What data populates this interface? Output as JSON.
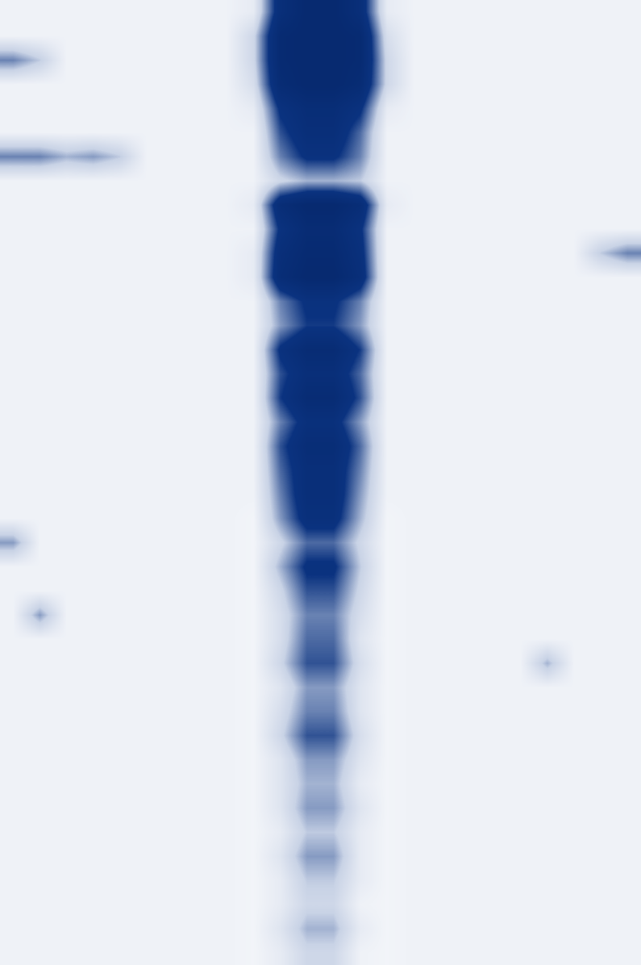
{
  "chart_data": {
    "type": "heatmap",
    "tick_labels": false,
    "value_range": [
      0,
      1
    ],
    "cells": [
      [
        0.1,
        0.1,
        0.1,
        0.1,
        0.1,
        0.1,
        0.1,
        0.1,
        0.1,
        0.15,
        0.8,
        1,
        1,
        0.8,
        0.15,
        0.1,
        0.1,
        0.1,
        0.1,
        0.1,
        0.1,
        0.1,
        0.1,
        0.1
      ],
      [
        0.1,
        0.1,
        0.1,
        0.1,
        0.1,
        0.1,
        0.1,
        0.1,
        0.1,
        0.3,
        0.95,
        1,
        1,
        0.95,
        0.25,
        0.1,
        0.1,
        0.1,
        0.1,
        0.1,
        0.1,
        0.1,
        0.1,
        0.1
      ],
      [
        0.5,
        0.35,
        0.1,
        0.1,
        0.1,
        0.1,
        0.1,
        0.1,
        0.1,
        0.3,
        0.95,
        1,
        1,
        0.95,
        0.3,
        0.1,
        0.1,
        0.1,
        0.1,
        0.1,
        0.1,
        0.1,
        0.1,
        0.1
      ],
      [
        0.1,
        0.1,
        0.1,
        0.1,
        0.1,
        0.1,
        0.1,
        0.1,
        0.1,
        0.25,
        0.9,
        1,
        1,
        0.9,
        0.3,
        0.1,
        0.1,
        0.1,
        0.1,
        0.1,
        0.1,
        0.1,
        0.1,
        0.1
      ],
      [
        0.1,
        0.1,
        0.1,
        0.1,
        0.1,
        0.1,
        0.1,
        0.1,
        0.1,
        0.15,
        0.7,
        0.85,
        0.85,
        0.7,
        0.15,
        0.1,
        0.1,
        0.1,
        0.1,
        0.1,
        0.1,
        0.1,
        0.1,
        0.1
      ],
      [
        0.1,
        0.1,
        0.1,
        0.1,
        0.1,
        0.1,
        0.1,
        0.1,
        0.1,
        0.1,
        0.6,
        0.8,
        0.8,
        0.55,
        0.1,
        0.1,
        0.1,
        0.1,
        0.1,
        0.1,
        0.1,
        0.1,
        0.1,
        0.1
      ],
      [
        0.5,
        0.5,
        0.4,
        0.45,
        0.35,
        0.1,
        0.1,
        0.1,
        0.1,
        0.1,
        0.5,
        0.7,
        0.7,
        0.5,
        0.1,
        0.1,
        0.1,
        0.1,
        0.1,
        0.1,
        0.1,
        0.1,
        0.1,
        0.1
      ],
      [
        0.1,
        0.1,
        0.1,
        0.1,
        0.1,
        0.1,
        0.1,
        0.1,
        0.1,
        0.1,
        0.3,
        0.4,
        0.4,
        0.35,
        0.1,
        0.1,
        0.1,
        0.1,
        0.1,
        0.1,
        0.1,
        0.1,
        0.1,
        0.1
      ],
      [
        0.1,
        0.1,
        0.1,
        0.1,
        0.1,
        0.1,
        0.1,
        0.1,
        0.1,
        0.15,
        0.85,
        1,
        1,
        0.85,
        0.15,
        0.1,
        0.1,
        0.1,
        0.1,
        0.1,
        0.1,
        0.1,
        0.1,
        0.1
      ],
      [
        0.1,
        0.1,
        0.1,
        0.1,
        0.1,
        0.1,
        0.1,
        0.1,
        0.1,
        0.1,
        0.7,
        0.9,
        0.9,
        0.7,
        0.1,
        0.1,
        0.1,
        0.1,
        0.1,
        0.1,
        0.1,
        0.1,
        0.1,
        0.1
      ],
      [
        0.1,
        0.1,
        0.1,
        0.1,
        0.1,
        0.1,
        0.1,
        0.1,
        0.1,
        0.15,
        0.8,
        0.95,
        0.95,
        0.75,
        0.1,
        0.1,
        0.1,
        0.1,
        0.1,
        0.1,
        0.1,
        0.1,
        0.35,
        0.5
      ],
      [
        0.1,
        0.1,
        0.1,
        0.1,
        0.1,
        0.1,
        0.1,
        0.1,
        0.1,
        0.15,
        0.85,
        1,
        1,
        0.8,
        0.1,
        0.1,
        0.1,
        0.1,
        0.1,
        0.1,
        0.1,
        0.1,
        0.1,
        0.1
      ],
      [
        0.1,
        0.1,
        0.1,
        0.1,
        0.1,
        0.1,
        0.1,
        0.1,
        0.1,
        0.1,
        0.5,
        0.7,
        0.7,
        0.5,
        0.1,
        0.1,
        0.1,
        0.1,
        0.1,
        0.1,
        0.1,
        0.1,
        0.1,
        0.1
      ],
      [
        0.1,
        0.1,
        0.1,
        0.1,
        0.1,
        0.1,
        0.1,
        0.1,
        0.1,
        0.1,
        0.45,
        0.65,
        0.65,
        0.45,
        0.1,
        0.1,
        0.1,
        0.1,
        0.1,
        0.1,
        0.1,
        0.1,
        0.1,
        0.1
      ],
      [
        0.1,
        0.1,
        0.1,
        0.1,
        0.1,
        0.1,
        0.1,
        0.1,
        0.1,
        0.1,
        0.7,
        0.9,
        0.9,
        0.65,
        0.1,
        0.1,
        0.1,
        0.1,
        0.1,
        0.1,
        0.1,
        0.1,
        0.1,
        0.1
      ],
      [
        0.1,
        0.1,
        0.1,
        0.1,
        0.1,
        0.1,
        0.1,
        0.1,
        0.1,
        0.1,
        0.6,
        0.8,
        0.8,
        0.55,
        0.1,
        0.1,
        0.1,
        0.1,
        0.1,
        0.1,
        0.1,
        0.1,
        0.1,
        0.1
      ],
      [
        0.1,
        0.1,
        0.1,
        0.1,
        0.1,
        0.1,
        0.1,
        0.1,
        0.1,
        0.1,
        0.65,
        0.9,
        0.9,
        0.6,
        0.1,
        0.1,
        0.1,
        0.1,
        0.1,
        0.1,
        0.1,
        0.1,
        0.1,
        0.1
      ],
      [
        0.1,
        0.1,
        0.1,
        0.1,
        0.1,
        0.1,
        0.1,
        0.1,
        0.1,
        0.1,
        0.5,
        0.75,
        0.75,
        0.45,
        0.1,
        0.1,
        0.1,
        0.1,
        0.1,
        0.1,
        0.1,
        0.1,
        0.1,
        0.1
      ],
      [
        0.1,
        0.1,
        0.1,
        0.1,
        0.1,
        0.1,
        0.1,
        0.1,
        0.1,
        0.1,
        0.6,
        0.85,
        0.85,
        0.55,
        0.1,
        0.1,
        0.1,
        0.1,
        0.1,
        0.1,
        0.1,
        0.1,
        0.1,
        0.1
      ],
      [
        0.1,
        0.1,
        0.1,
        0.1,
        0.1,
        0.1,
        0.1,
        0.1,
        0.1,
        0.1,
        0.55,
        0.8,
        0.8,
        0.5,
        0.1,
        0.1,
        0.1,
        0.1,
        0.1,
        0.1,
        0.1,
        0.1,
        0.1,
        0.1
      ],
      [
        0.1,
        0.1,
        0.1,
        0.1,
        0.1,
        0.1,
        0.1,
        0.1,
        0.1,
        0.1,
        0.5,
        0.8,
        0.8,
        0.45,
        0.1,
        0.1,
        0.1,
        0.1,
        0.1,
        0.1,
        0.1,
        0.1,
        0.1,
        0.1
      ],
      [
        0.1,
        0.1,
        0.1,
        0.1,
        0.1,
        0.1,
        0.1,
        0.1,
        0.1,
        0.08,
        0.45,
        0.75,
        0.75,
        0.4,
        0.08,
        0.1,
        0.1,
        0.1,
        0.1,
        0.1,
        0.1,
        0.1,
        0.1,
        0.1
      ],
      [
        0.45,
        0.1,
        0.1,
        0.1,
        0.1,
        0.1,
        0.1,
        0.1,
        0.1,
        0.08,
        0.3,
        0.55,
        0.55,
        0.3,
        0.08,
        0.1,
        0.1,
        0.1,
        0.1,
        0.1,
        0.1,
        0.1,
        0.1,
        0.1
      ],
      [
        0.1,
        0.1,
        0.1,
        0.1,
        0.1,
        0.1,
        0.1,
        0.1,
        0.1,
        0.08,
        0.4,
        0.7,
        0.7,
        0.35,
        0.08,
        0.1,
        0.1,
        0.1,
        0.1,
        0.1,
        0.1,
        0.1,
        0.1,
        0.1
      ],
      [
        0.1,
        0.1,
        0.1,
        0.1,
        0.1,
        0.1,
        0.1,
        0.1,
        0.1,
        0.08,
        0.3,
        0.6,
        0.6,
        0.3,
        0.08,
        0.1,
        0.1,
        0.1,
        0.1,
        0.1,
        0.1,
        0.1,
        0.1,
        0.1
      ],
      [
        0.1,
        0.45,
        0.1,
        0.1,
        0.1,
        0.1,
        0.1,
        0.1,
        0.1,
        0.08,
        0.25,
        0.5,
        0.5,
        0.25,
        0.08,
        0.1,
        0.1,
        0.1,
        0.1,
        0.1,
        0.1,
        0.1,
        0.1,
        0.1
      ],
      [
        0.1,
        0.1,
        0.1,
        0.1,
        0.1,
        0.1,
        0.1,
        0.1,
        0.1,
        0.08,
        0.25,
        0.55,
        0.55,
        0.2,
        0.08,
        0.1,
        0.1,
        0.1,
        0.1,
        0.1,
        0.1,
        0.1,
        0.1,
        0.1
      ],
      [
        0.1,
        0.1,
        0.1,
        0.1,
        0.1,
        0.1,
        0.1,
        0.1,
        0.1,
        0.08,
        0.3,
        0.6,
        0.6,
        0.25,
        0.08,
        0.1,
        0.1,
        0.1,
        0.1,
        0.1,
        0.4,
        0.1,
        0.1,
        0.1
      ],
      [
        0.1,
        0.1,
        0.1,
        0.1,
        0.1,
        0.1,
        0.1,
        0.1,
        0.1,
        0.08,
        0.2,
        0.45,
        0.45,
        0.2,
        0.08,
        0.1,
        0.1,
        0.1,
        0.1,
        0.1,
        0.1,
        0.1,
        0.1,
        0.1
      ],
      [
        0.1,
        0.1,
        0.1,
        0.1,
        0.1,
        0.1,
        0.1,
        0.1,
        0.1,
        0.08,
        0.25,
        0.5,
        0.5,
        0.2,
        0.08,
        0.1,
        0.1,
        0.1,
        0.1,
        0.1,
        0.1,
        0.1,
        0.1,
        0.1
      ],
      [
        0.1,
        0.1,
        0.1,
        0.1,
        0.1,
        0.1,
        0.1,
        0.1,
        0.1,
        0.08,
        0.3,
        0.6,
        0.6,
        0.25,
        0.08,
        0.1,
        0.1,
        0.1,
        0.1,
        0.1,
        0.1,
        0.1,
        0.1,
        0.1
      ],
      [
        0.1,
        0.1,
        0.1,
        0.1,
        0.1,
        0.1,
        0.1,
        0.1,
        0.1,
        0.08,
        0.2,
        0.45,
        0.45,
        0.2,
        0.08,
        0.1,
        0.1,
        0.1,
        0.1,
        0.1,
        0.1,
        0.1,
        0.1,
        0.1
      ],
      [
        0.1,
        0.1,
        0.1,
        0.1,
        0.1,
        0.1,
        0.1,
        0.1,
        0.1,
        0.08,
        0.2,
        0.4,
        0.4,
        0.15,
        0.08,
        0.1,
        0.1,
        0.1,
        0.1,
        0.1,
        0.1,
        0.1,
        0.1,
        0.1
      ],
      [
        0.1,
        0.1,
        0.1,
        0.1,
        0.1,
        0.1,
        0.1,
        0.1,
        0.1,
        0.08,
        0.2,
        0.45,
        0.45,
        0.2,
        0.08,
        0.1,
        0.1,
        0.1,
        0.1,
        0.1,
        0.1,
        0.1,
        0.1,
        0.1
      ],
      [
        0.1,
        0.1,
        0.1,
        0.1,
        0.1,
        0.1,
        0.1,
        0.1,
        0.1,
        0.08,
        0.15,
        0.35,
        0.35,
        0.15,
        0.08,
        0.1,
        0.1,
        0.1,
        0.1,
        0.1,
        0.1,
        0.1,
        0.1,
        0.1
      ],
      [
        0.1,
        0.1,
        0.1,
        0.1,
        0.1,
        0.1,
        0.1,
        0.1,
        0.1,
        0.08,
        0.2,
        0.45,
        0.45,
        0.15,
        0.08,
        0.1,
        0.1,
        0.1,
        0.1,
        0.1,
        0.1,
        0.1,
        0.1,
        0.1
      ],
      [
        0.1,
        0.1,
        0.1,
        0.1,
        0.1,
        0.1,
        0.1,
        0.1,
        0.1,
        0.08,
        0.15,
        0.35,
        0.35,
        0.15,
        0.08,
        0.1,
        0.1,
        0.1,
        0.1,
        0.1,
        0.1,
        0.1,
        0.1,
        0.1
      ],
      [
        0.1,
        0.1,
        0.1,
        0.1,
        0.1,
        0.1,
        0.1,
        0.1,
        0.1,
        0.08,
        0.15,
        0.3,
        0.3,
        0.1,
        0.08,
        0.1,
        0.1,
        0.1,
        0.1,
        0.1,
        0.1,
        0.1,
        0.1,
        0.1
      ],
      [
        0.1,
        0.1,
        0.1,
        0.1,
        0.1,
        0.1,
        0.1,
        0.1,
        0.1,
        0.08,
        0.2,
        0.4,
        0.4,
        0.15,
        0.08,
        0.1,
        0.1,
        0.1,
        0.1,
        0.1,
        0.1,
        0.1,
        0.1,
        0.1
      ],
      [
        0.1,
        0.1,
        0.1,
        0.1,
        0.1,
        0.1,
        0.1,
        0.1,
        0.1,
        0.08,
        0.15,
        0.3,
        0.3,
        0.1,
        0.08,
        0.1,
        0.1,
        0.1,
        0.1,
        0.1,
        0.1,
        0.1,
        0.1,
        0.1
      ]
    ]
  }
}
